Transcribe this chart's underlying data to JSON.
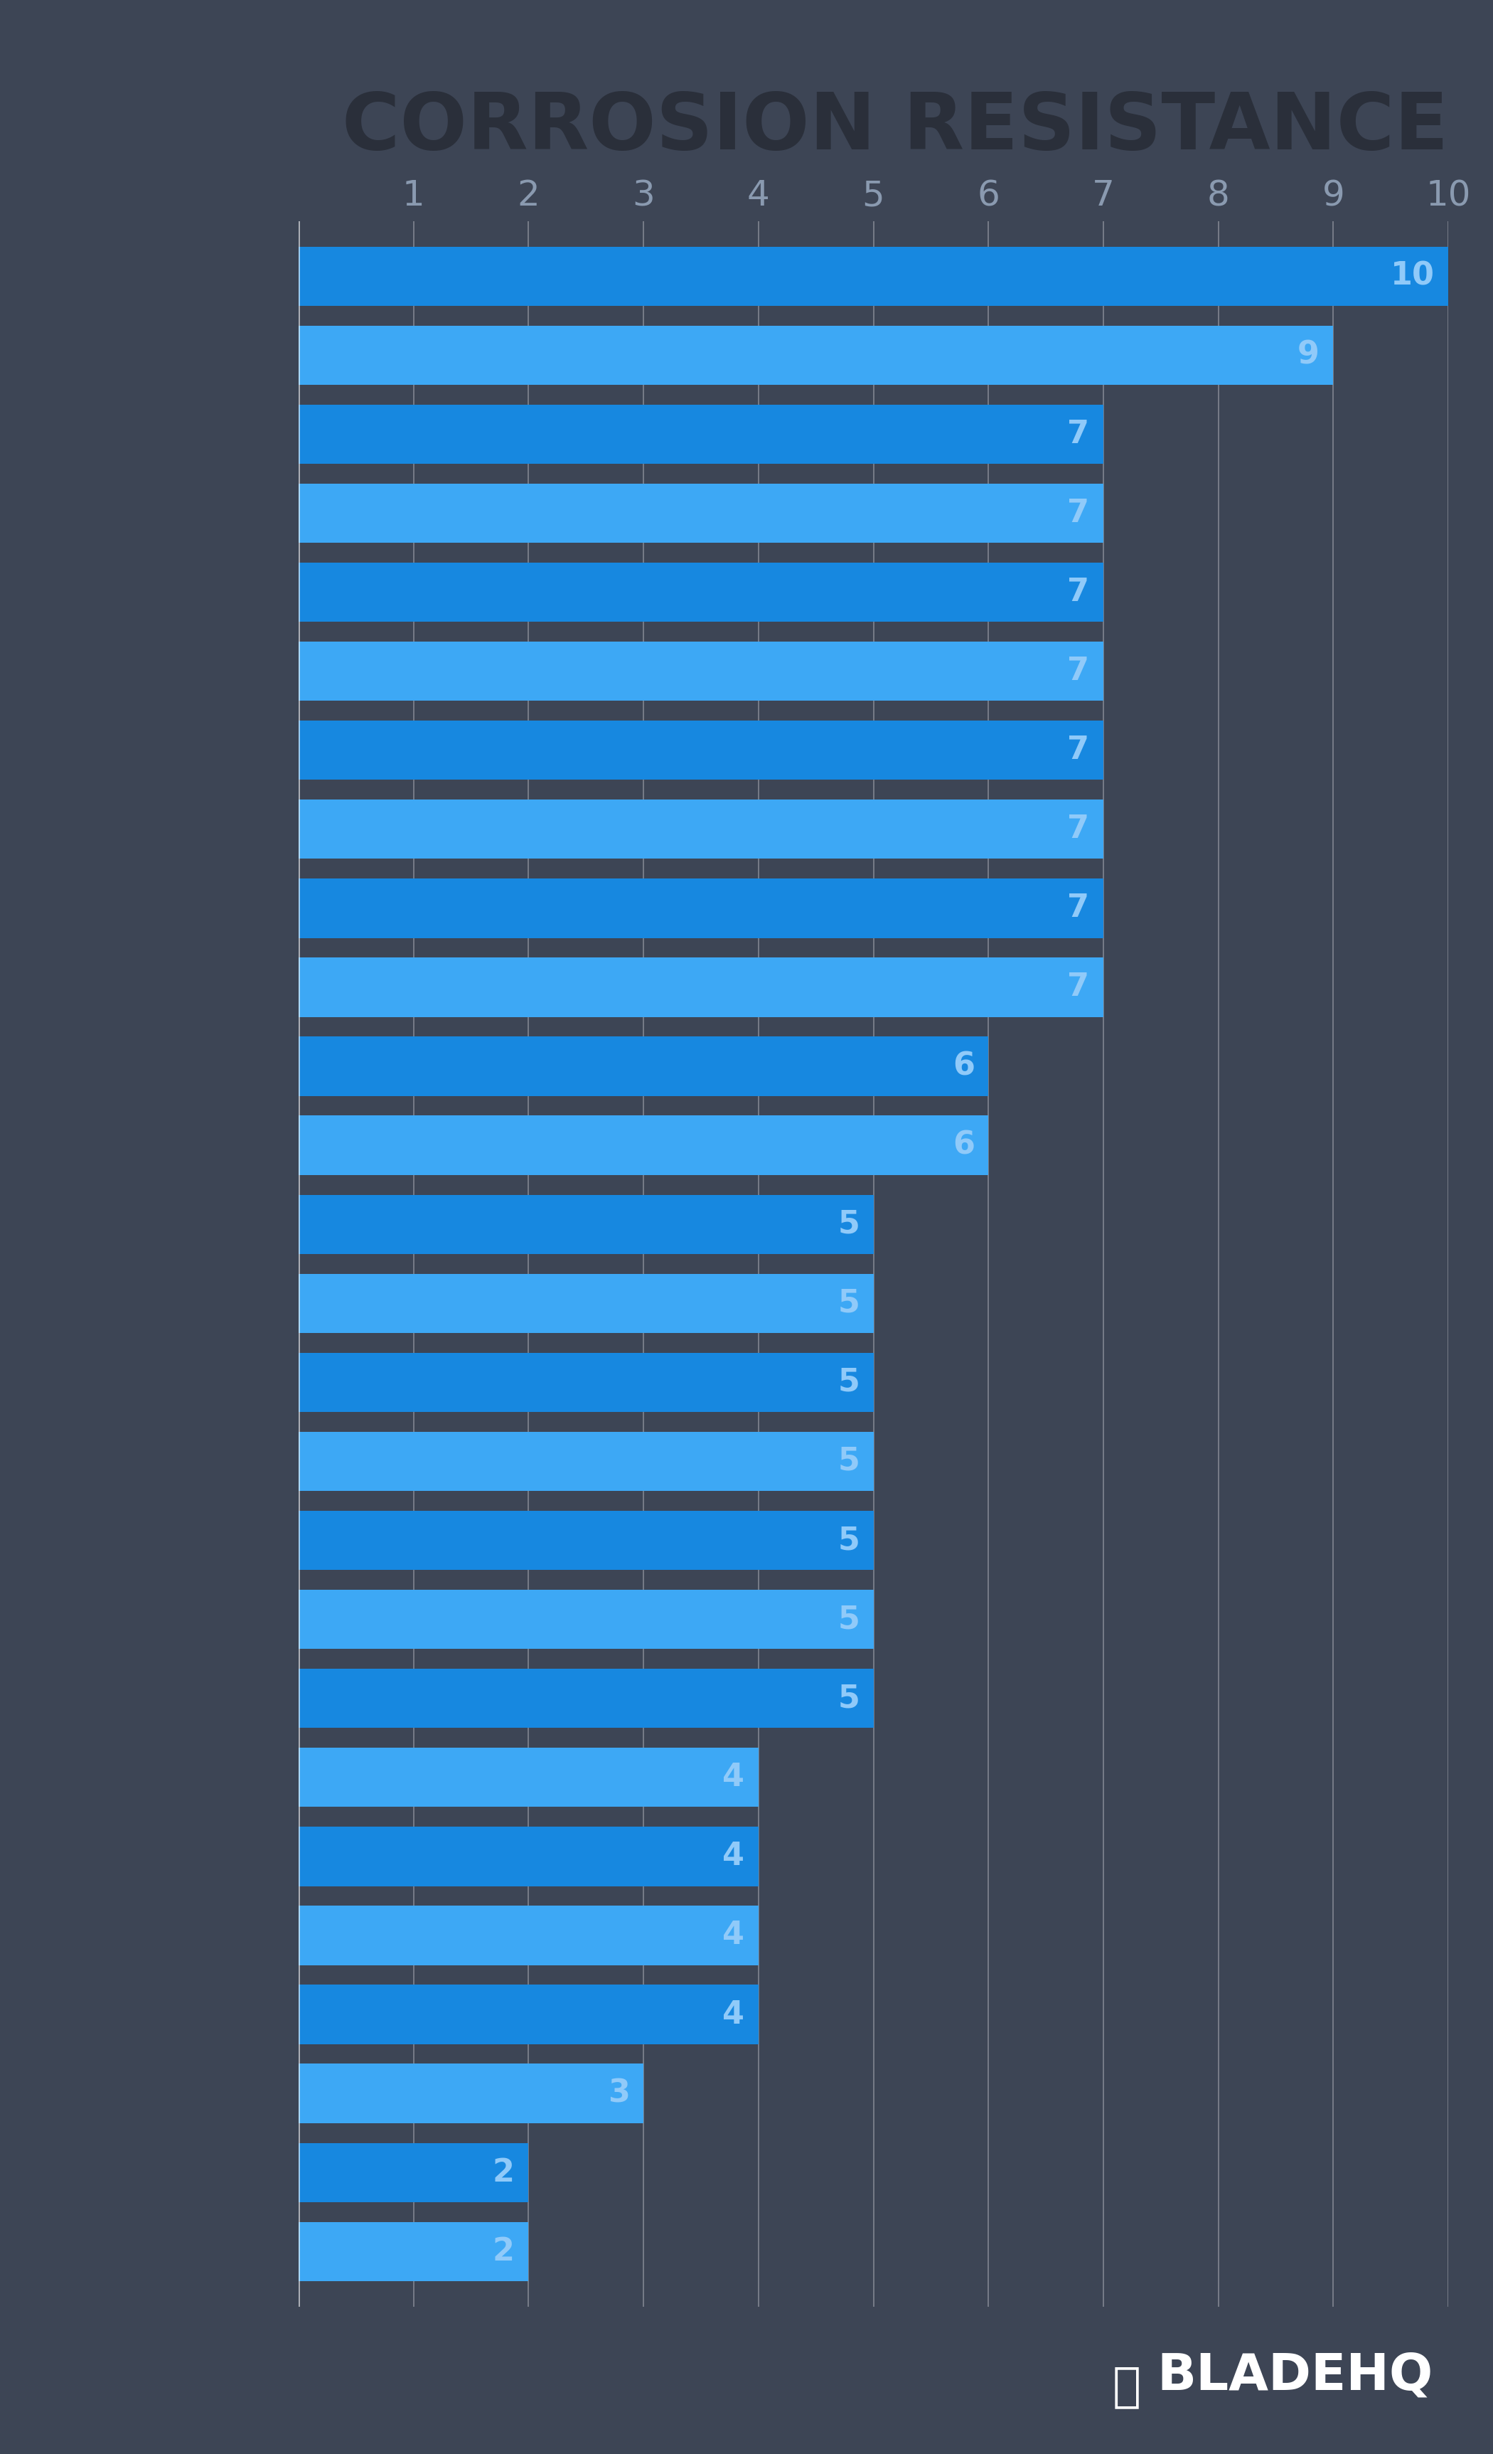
{
  "title": "CORROSION RESISTANCE",
  "background_color": "#3d4555",
  "bar_color_dark": "#1788e0",
  "bar_color_light": "#3da8f5",
  "values": [
    10,
    9,
    7,
    7,
    7,
    7,
    7,
    7,
    7,
    7,
    6,
    6,
    5,
    5,
    5,
    5,
    5,
    5,
    5,
    4,
    4,
    4,
    4,
    3,
    2,
    2
  ],
  "xlim": [
    0,
    10
  ],
  "xticks": [
    1,
    2,
    3,
    4,
    5,
    6,
    7,
    8,
    9,
    10
  ],
  "title_color": "#2a2f3a",
  "tick_color": "#8a9ab0",
  "value_label_color": "#90caf9",
  "gridline_color": "#ffffff",
  "bladehq_color": "#ffffff",
  "title_fontsize": 80,
  "value_fontsize": 32,
  "tick_fontsize": 36
}
